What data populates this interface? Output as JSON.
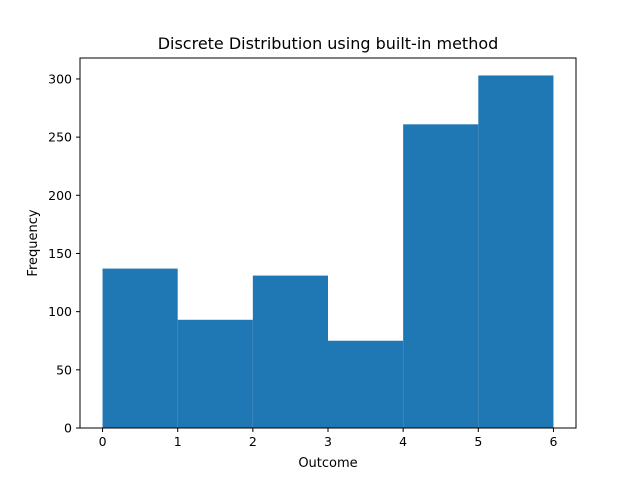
{
  "chart_data": {
    "type": "bar",
    "title": "Discrete Distribution using built-in method",
    "xlabel": "Outcome",
    "ylabel": "Frequency",
    "bins": [
      {
        "x0": 0,
        "x1": 1,
        "value": 137
      },
      {
        "x0": 1,
        "x1": 2,
        "value": 93
      },
      {
        "x0": 2,
        "x1": 3,
        "value": 131
      },
      {
        "x0": 3,
        "x1": 4,
        "value": 75
      },
      {
        "x0": 4,
        "x1": 5,
        "value": 261
      },
      {
        "x0": 5,
        "x1": 6,
        "value": 303
      }
    ],
    "xlim": [
      -0.3,
      6.3
    ],
    "ylim": [
      0,
      318
    ],
    "xticks": [
      "0",
      "1",
      "2",
      "3",
      "4",
      "5",
      "6"
    ],
    "yticks": [
      "0",
      "50",
      "100",
      "150",
      "200",
      "250",
      "300"
    ],
    "grid": false,
    "legend": "none",
    "bar_color": "#1f77b4"
  }
}
